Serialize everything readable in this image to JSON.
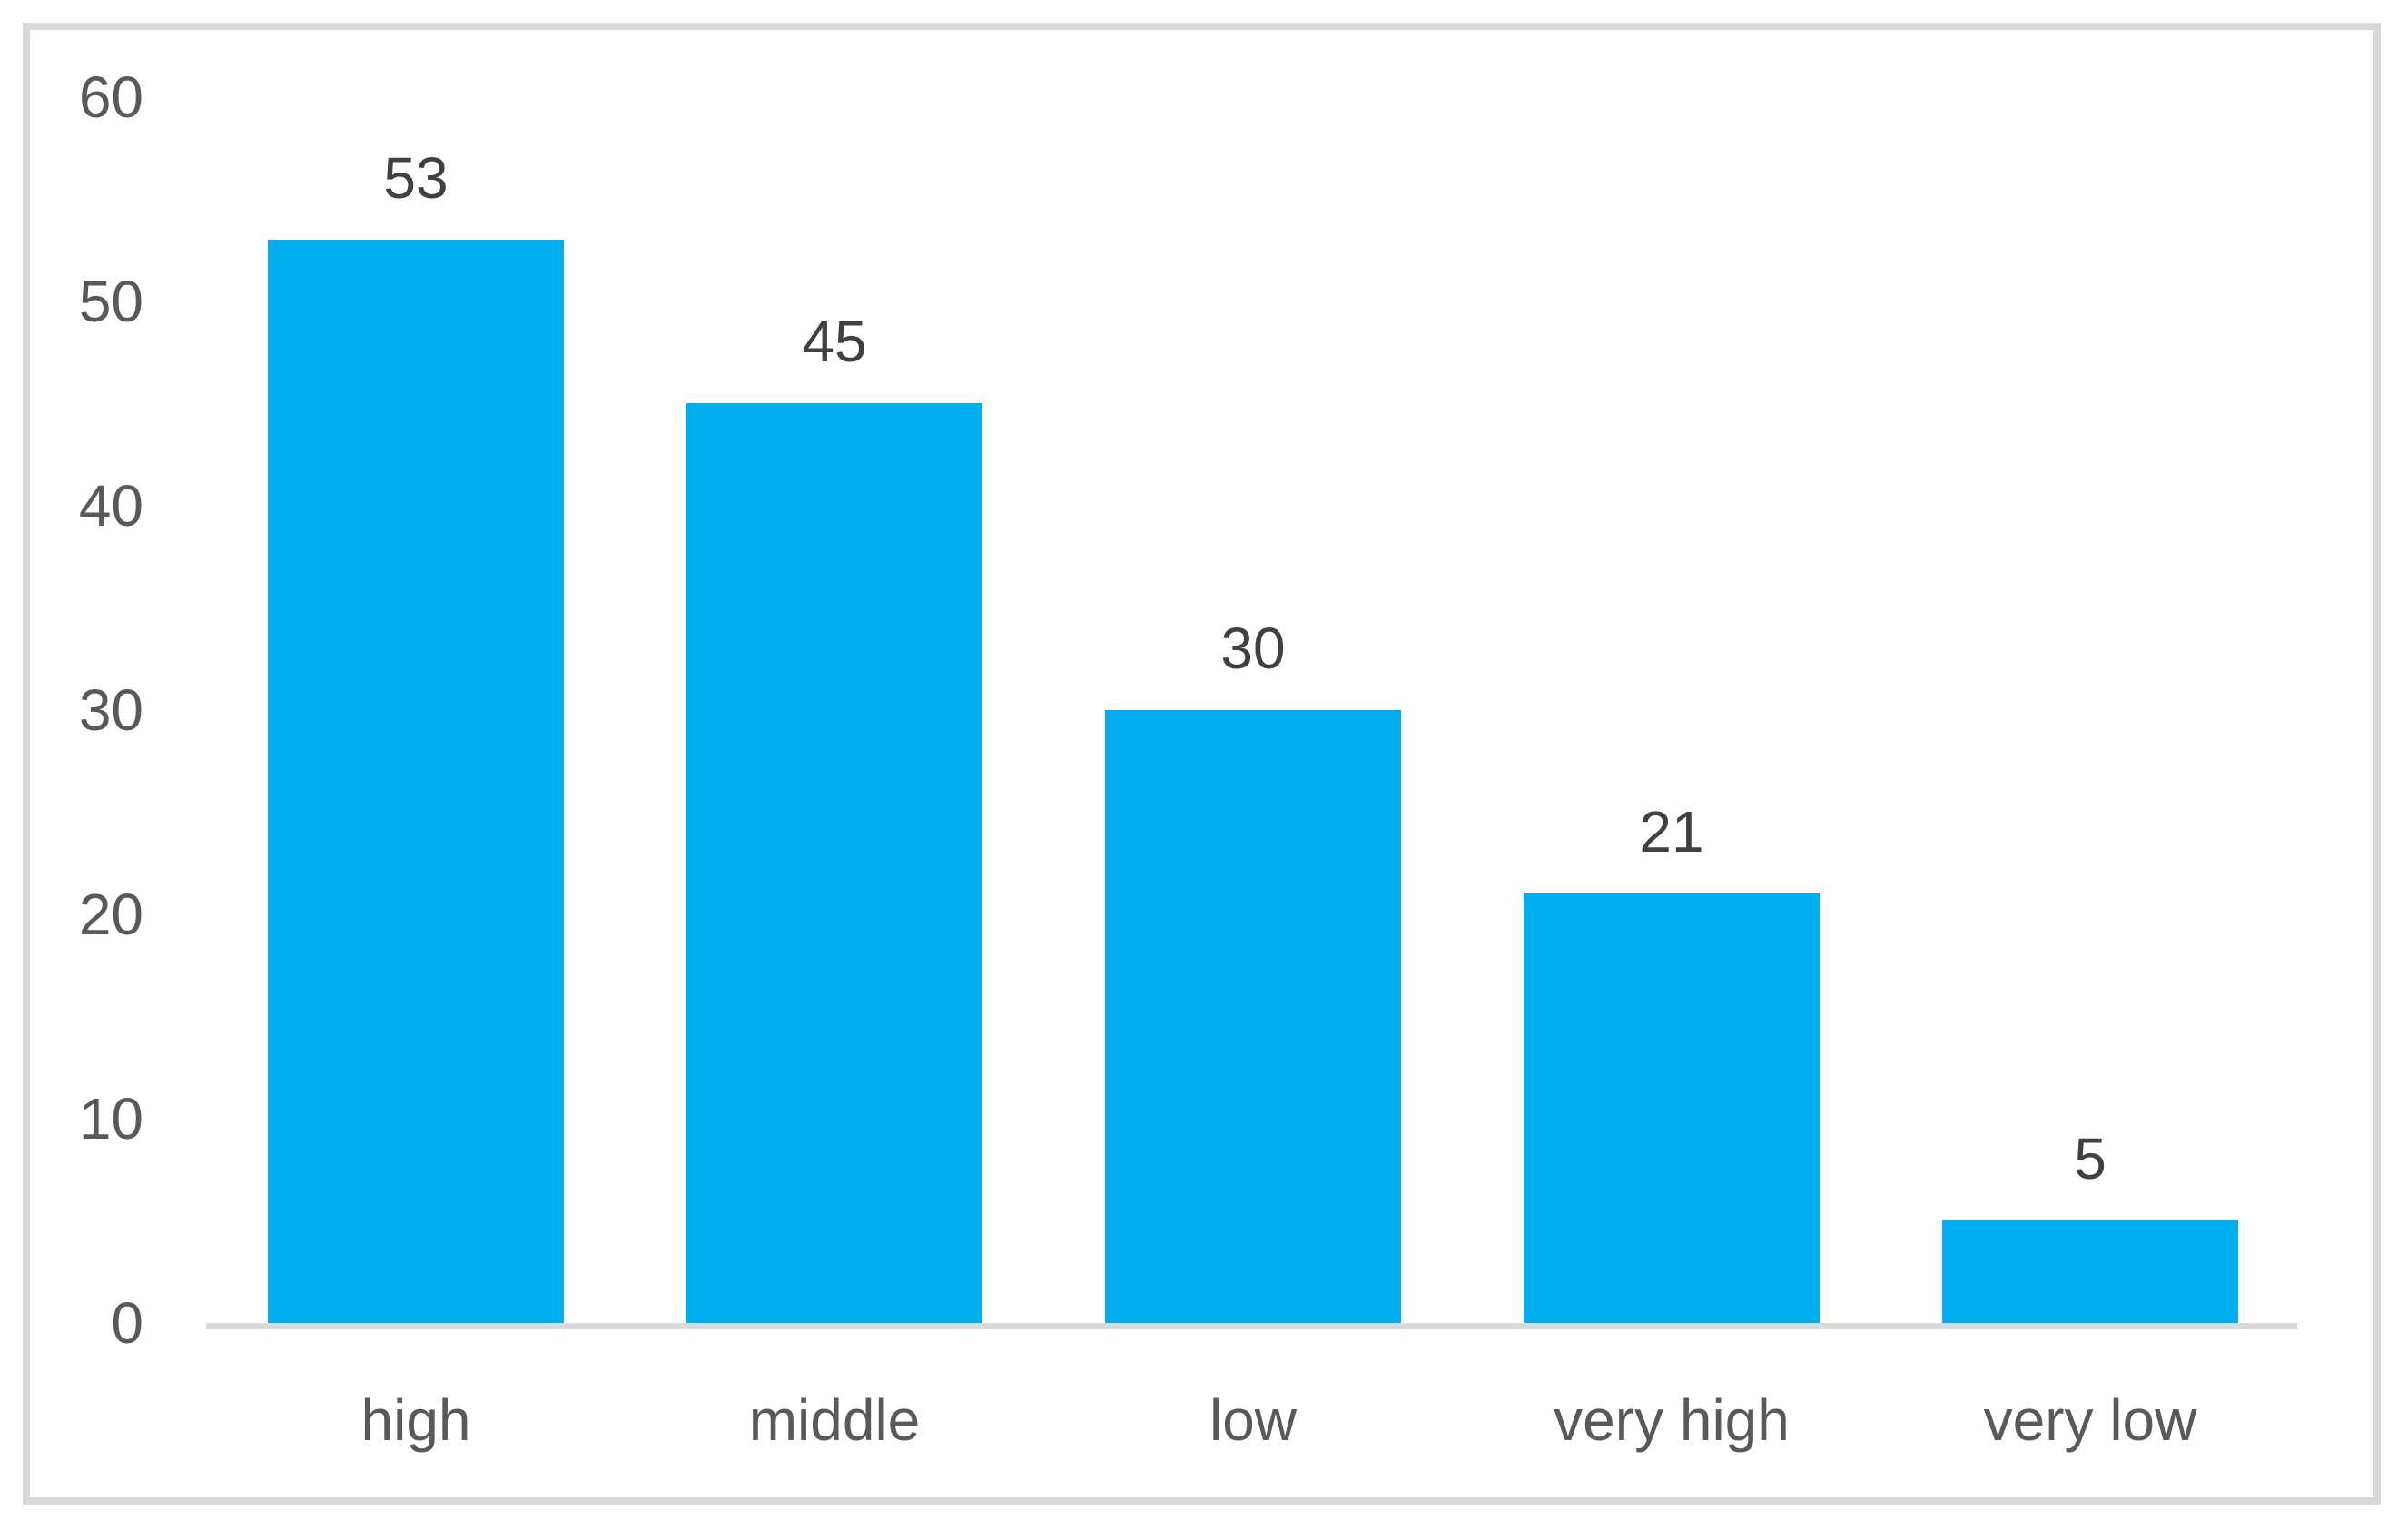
{
  "chart_data": {
    "type": "bar",
    "title": "",
    "xlabel": "",
    "ylabel": "",
    "categories": [
      "high",
      "middle",
      "low",
      "very high",
      "very low"
    ],
    "values": [
      53,
      45,
      30,
      21,
      5
    ],
    "data_labels": [
      "53",
      "45",
      "30",
      "21",
      "5"
    ],
    "y_ticks": [
      60,
      50,
      40,
      30,
      20,
      10,
      0
    ],
    "ylim": [
      0,
      60
    ],
    "grid": false,
    "legend": "none",
    "colors": {
      "bar_fill": "#00AEEF",
      "value_label_text": "#404040",
      "tick_text": "#595959",
      "category_text": "#595959",
      "axis_line": "#D9D9D9",
      "frame_border": "#D9D9D9",
      "background": "#FFFFFF"
    }
  }
}
